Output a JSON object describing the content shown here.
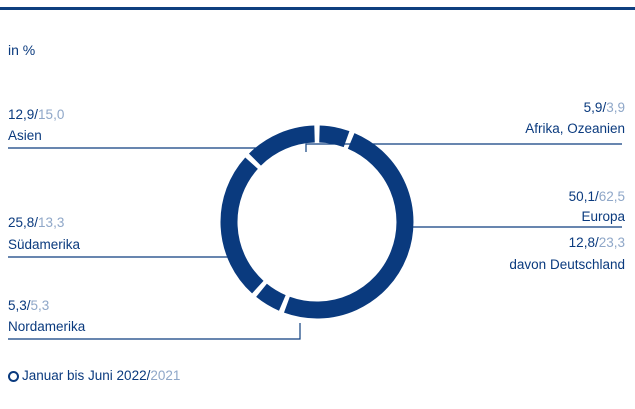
{
  "unit_label": "in %",
  "colors": {
    "main": "#0a3a7e",
    "previous_year": "#8fa7c8",
    "line": "#0f3f7f"
  },
  "legend": {
    "current": "Januar bis Juni 2022",
    "separator": "/",
    "previous": "2021"
  },
  "chart_data": {
    "type": "pie",
    "variant": "donut",
    "series_current_label": "Januar bis Juni 2022",
    "series_previous_label": "2021",
    "slices": [
      {
        "name": "Afrika, Ozeanien",
        "value": 5.9,
        "value_text": "5,9",
        "previous": 3.9,
        "previous_text": "3,9"
      },
      {
        "name": "Europa",
        "value": 50.1,
        "value_text": "50,1",
        "previous": 62.5,
        "previous_text": "62,5"
      },
      {
        "name": "Nordamerika",
        "value": 5.3,
        "value_text": "5,3",
        "previous": 5.3,
        "previous_text": "5,3"
      },
      {
        "name": "Südamerika",
        "value": 25.8,
        "value_text": "25,8",
        "previous": 13.3,
        "previous_text": "13,3"
      },
      {
        "name": "Asien",
        "value": 12.9,
        "value_text": "12,9",
        "previous": 15.0,
        "previous_text": "15,0"
      }
    ],
    "sub_item": {
      "name": "davon Deutschland",
      "value": 12.8,
      "value_text": "12,8",
      "previous": 23.3,
      "previous_text": "23,3"
    }
  }
}
